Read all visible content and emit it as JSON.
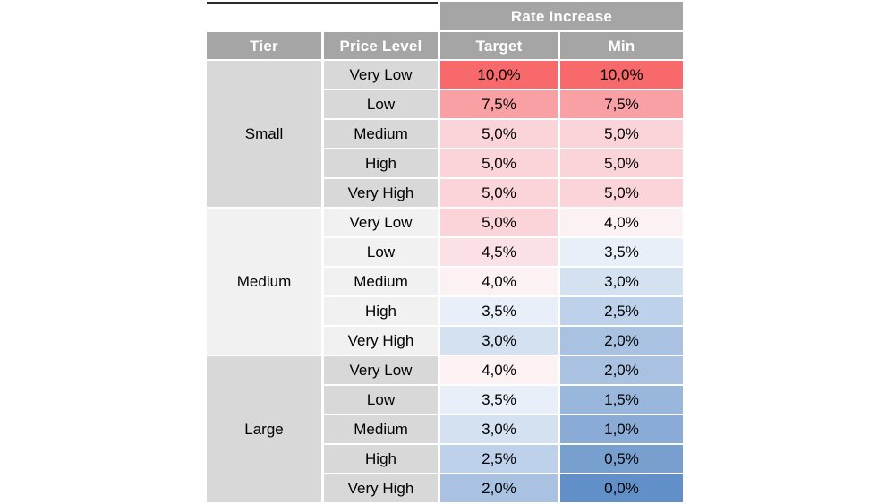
{
  "table": {
    "group_header": "Rate Increase",
    "columns": [
      "Tier",
      "Price Level",
      "Target",
      "Min"
    ]
  },
  "chart_data": {
    "type": "heatmap",
    "title": "Rate Increase",
    "columns": [
      "Tier",
      "Price Level",
      "Target",
      "Min"
    ],
    "value_format": "percent-comma-decimal",
    "tiers": [
      {
        "tier": "Small",
        "rows": [
          {
            "price_level": "Very Low",
            "target": "10,0%",
            "min": "10,0%"
          },
          {
            "price_level": "Low",
            "target": "7,5%",
            "min": "7,5%"
          },
          {
            "price_level": "Medium",
            "target": "5,0%",
            "min": "5,0%"
          },
          {
            "price_level": "High",
            "target": "5,0%",
            "min": "5,0%"
          },
          {
            "price_level": "Very High",
            "target": "5,0%",
            "min": "5,0%"
          }
        ]
      },
      {
        "tier": "Medium",
        "rows": [
          {
            "price_level": "Very Low",
            "target": "5,0%",
            "min": "4,0%"
          },
          {
            "price_level": "Low",
            "target": "4,5%",
            "min": "3,5%"
          },
          {
            "price_level": "Medium",
            "target": "4,0%",
            "min": "3,0%"
          },
          {
            "price_level": "High",
            "target": "3,5%",
            "min": "2,5%"
          },
          {
            "price_level": "Very High",
            "target": "3,0%",
            "min": "2,0%"
          }
        ]
      },
      {
        "tier": "Large",
        "rows": [
          {
            "price_level": "Very Low",
            "target": "4,0%",
            "min": "2,0%"
          },
          {
            "price_level": "Low",
            "target": "3,5%",
            "min": "1,5%"
          },
          {
            "price_level": "Medium",
            "target": "3,0%",
            "min": "1,0%"
          },
          {
            "price_level": "High",
            "target": "2,5%",
            "min": "0,5%"
          },
          {
            "price_level": "Very High",
            "target": "2,0%",
            "min": "0,0%"
          }
        ]
      }
    ],
    "value_colors": {
      "10,0%": "#F8696B",
      "7,5%": "#F9A0A5",
      "5,0%": "#FAD4D9",
      "4,5%": "#FBE1E5",
      "4,0%": "#FCF1F3",
      "3,5%": "#E9EFF8",
      "3,0%": "#D4E1F1",
      "2,5%": "#BED1EA",
      "2,0%": "#A9C2E1",
      "1,5%": "#99B7DC",
      "1,0%": "#89ABD5",
      "0,5%": "#78A0CE",
      "0,0%": "#6190C8"
    },
    "color_scale": {
      "low_color": "#6190C8",
      "mid_color": "#FCFCFF",
      "high_color": "#F8696B",
      "low_value": "0,0%",
      "high_value": "10,0%"
    },
    "tier_row_colors": {
      "Small": "#D8D8D8",
      "Medium": "#F1F1F1",
      "Large": "#D8D8D8"
    },
    "colors": {
      "header_bg": "#A5A5A5",
      "header_text": "#FFFFFF",
      "cell_text": "#000000",
      "corner_top_border": "#2B2B2B",
      "grid_border": "#FFFFFF",
      "background": "#FFFFFF"
    }
  }
}
